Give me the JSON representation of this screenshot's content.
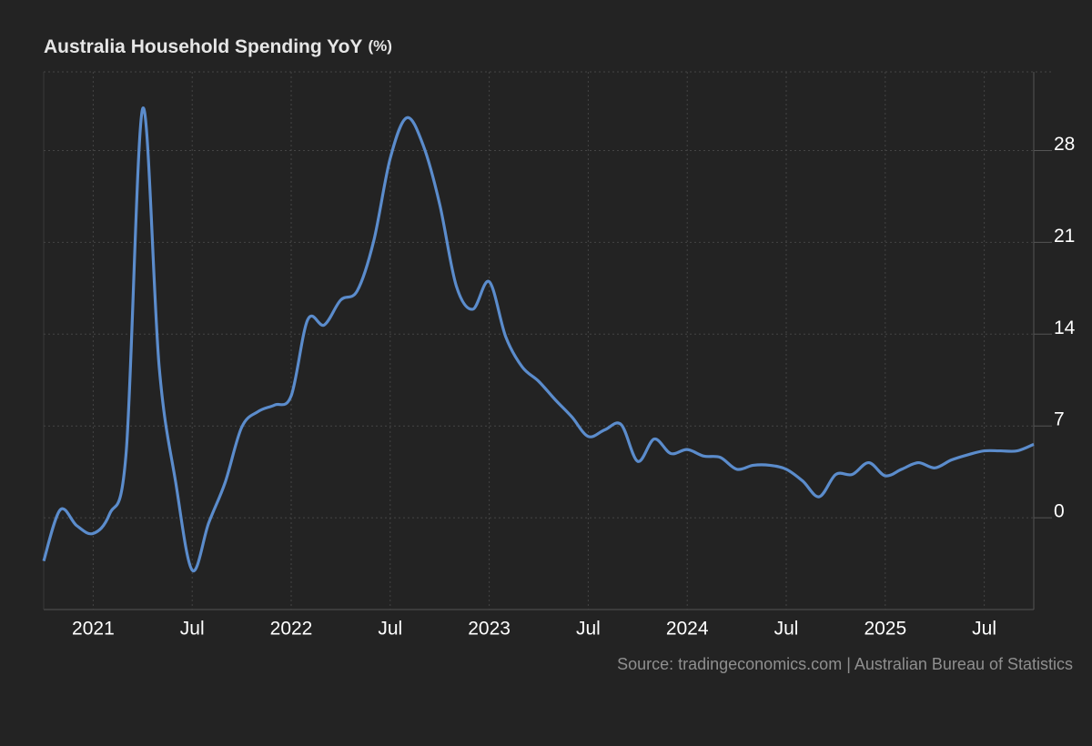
{
  "chart_data": {
    "type": "line",
    "title": "Australia Household Spending YoY",
    "title_unit": "(%)",
    "source": "Source: tradingeconomics.com | Australian Bureau of Statistics",
    "x": [
      "2020-10",
      "2020-11",
      "2020-12",
      "2021-01",
      "2021-02",
      "2021-03",
      "2021-04",
      "2021-05",
      "2021-06",
      "2021-07",
      "2021-08",
      "2021-09",
      "2021-10",
      "2021-11",
      "2021-12",
      "2022-01",
      "2022-02",
      "2022-03",
      "2022-04",
      "2022-05",
      "2022-06",
      "2022-07",
      "2022-08",
      "2022-09",
      "2022-10",
      "2022-11",
      "2022-12",
      "2023-01",
      "2023-02",
      "2023-03",
      "2023-04",
      "2023-05",
      "2023-06",
      "2023-07",
      "2023-08",
      "2023-09",
      "2023-10",
      "2023-11",
      "2023-12",
      "2024-01",
      "2024-02",
      "2024-03",
      "2024-04",
      "2024-05",
      "2024-06",
      "2024-07",
      "2024-08",
      "2024-09",
      "2024-10",
      "2024-11",
      "2024-12",
      "2025-01",
      "2025-02",
      "2025-03",
      "2025-04",
      "2025-05",
      "2025-06",
      "2025-07",
      "2025-08",
      "2025-09",
      "2025-10"
    ],
    "series": [
      {
        "name": "Household Spending YoY",
        "color": "#5b8ccc",
        "values": [
          -3.3,
          0.6,
          -0.6,
          -1.2,
          0.3,
          5.0,
          31.2,
          11.5,
          2.7,
          -4.0,
          -0.4,
          2.7,
          6.9,
          8.1,
          8.6,
          9.3,
          15.1,
          14.7,
          16.6,
          17.3,
          21.1,
          27.4,
          30.5,
          28.4,
          23.9,
          17.7,
          15.9,
          18.0,
          13.8,
          11.5,
          10.4,
          9.0,
          7.7,
          6.2,
          6.7,
          7.1,
          4.3,
          6.0,
          4.9,
          5.2,
          4.7,
          4.6,
          3.7,
          4.0,
          4.0,
          3.7,
          2.8,
          1.6,
          3.3,
          3.3,
          4.2,
          3.2,
          3.7,
          4.2,
          3.8,
          4.4,
          4.8,
          5.1,
          5.1,
          5.1,
          5.6
        ]
      }
    ],
    "xlim": [
      "2020-10",
      "2025-10"
    ],
    "xticks": [
      {
        "value": "2021-01",
        "label": "2021"
      },
      {
        "value": "2021-07",
        "label": "Jul"
      },
      {
        "value": "2022-01",
        "label": "2022"
      },
      {
        "value": "2022-07",
        "label": "Jul"
      },
      {
        "value": "2023-01",
        "label": "2023"
      },
      {
        "value": "2023-07",
        "label": "Jul"
      },
      {
        "value": "2024-01",
        "label": "2024"
      },
      {
        "value": "2024-07",
        "label": "Jul"
      },
      {
        "value": "2025-01",
        "label": "2025"
      },
      {
        "value": "2025-07",
        "label": "Jul"
      }
    ],
    "ylim": [
      -7,
      34
    ],
    "yticks": [
      0,
      7,
      14,
      21,
      28
    ],
    "grid": true
  }
}
